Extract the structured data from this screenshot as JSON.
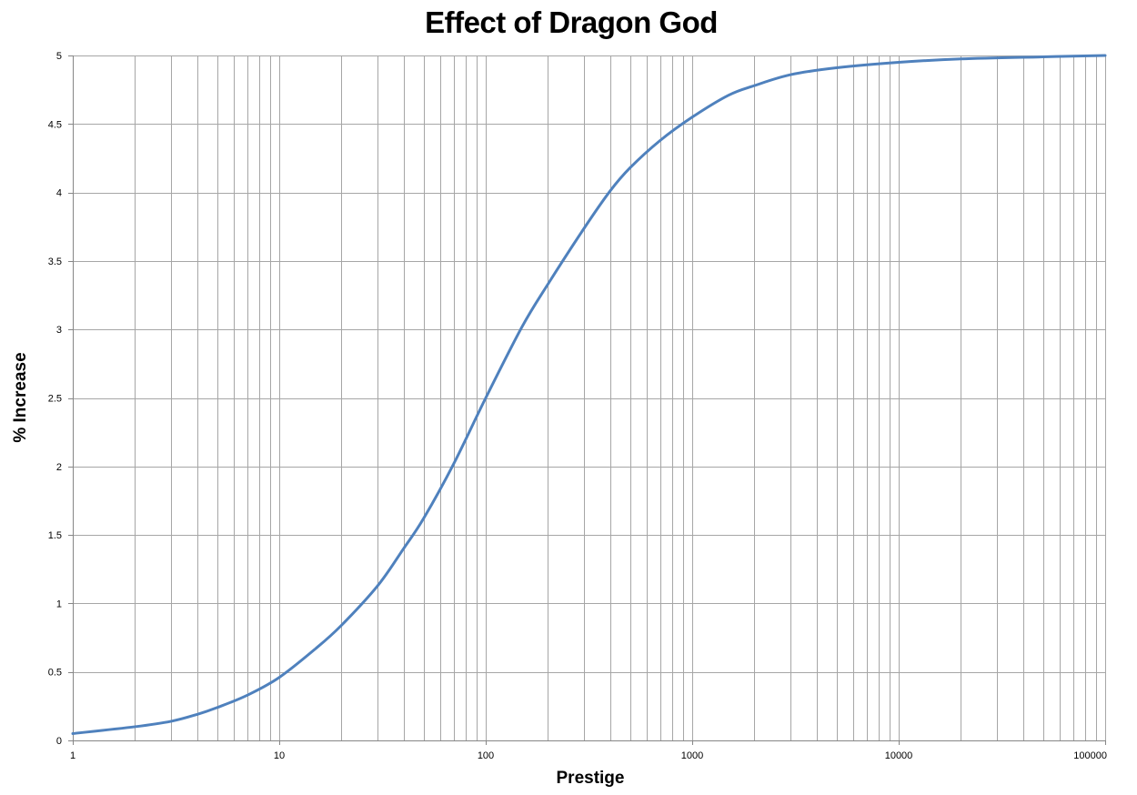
{
  "chart_data": {
    "type": "line",
    "title": "Effect of Dragon God",
    "xlabel": "Prestige",
    "ylabel": "% Increase",
    "x_scale": "log",
    "xlim": [
      1,
      100000
    ],
    "ylim": [
      0,
      5
    ],
    "grid": true,
    "legend": "none",
    "x_ticks": [
      "1",
      "10",
      "100",
      "1000",
      "10000",
      "100000"
    ],
    "y_ticks": [
      "0",
      "0.5",
      "1",
      "1.5",
      "2",
      "2.5",
      "3",
      "3.5",
      "4",
      "4.5",
      "5"
    ],
    "line_color": "#4F81BD",
    "grid_color": "#A6A6A6",
    "series": [
      {
        "x": [
          1,
          2,
          3,
          4,
          5,
          7,
          10,
          15,
          20,
          30,
          40,
          50,
          70,
          100,
          150,
          200,
          300,
          400,
          500,
          700,
          1000,
          1500,
          2000,
          3000,
          5000,
          10000,
          20000,
          50000,
          100000
        ],
        "values": [
          0.05,
          0.1,
          0.14,
          0.19,
          0.24,
          0.33,
          0.46,
          0.67,
          0.84,
          1.13,
          1.4,
          1.62,
          2.02,
          2.5,
          3.02,
          3.33,
          3.74,
          4.01,
          4.18,
          4.38,
          4.55,
          4.71,
          4.78,
          4.86,
          4.91,
          4.95,
          4.975,
          4.99,
          5.0
        ]
      }
    ]
  }
}
